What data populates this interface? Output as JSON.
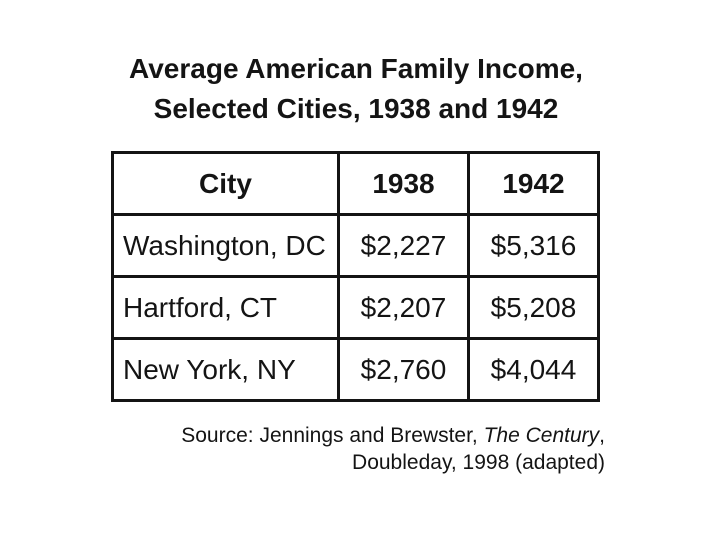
{
  "colors": {
    "background": "#ffffff",
    "text": "#141414",
    "table_border": "#141414"
  },
  "title": {
    "line1": "Average American Family Income,",
    "line2": "Selected Cities, 1938 and 1942"
  },
  "table": {
    "headers": {
      "city": "City",
      "y1938": "1938",
      "y1942": "1942"
    },
    "rows": [
      {
        "city": "Washington, DC",
        "v1938": "$2,227",
        "v1942": "$5,316"
      },
      {
        "city": "Hartford, CT",
        "v1938": "$2,207",
        "v1942": "$5,208"
      },
      {
        "city": "New York, NY",
        "v1938": "$2,760",
        "v1942": "$4,044"
      }
    ]
  },
  "source": {
    "line1_prefix": "Source: Jennings and Brewster, ",
    "line1_italic": "The Century",
    "line1_suffix": ",",
    "line2": "Doubleday, 1998 (adapted)"
  },
  "chart_data": {
    "type": "table",
    "title": "Average American Family Income, Selected Cities, 1938 and 1942",
    "columns": [
      "City",
      "1938",
      "1942"
    ],
    "rows": [
      [
        "Washington, DC",
        "$2,227",
        "$5,316"
      ],
      [
        "Hartford, CT",
        "$2,207",
        "$5,208"
      ],
      [
        "New York, NY",
        "$2,760",
        "$4,044"
      ]
    ],
    "series": [
      {
        "name": "1938",
        "values": [
          2227,
          2207,
          2760
        ]
      },
      {
        "name": "1942",
        "values": [
          5316,
          5208,
          4044
        ]
      }
    ],
    "categories": [
      "Washington, DC",
      "Hartford, CT",
      "New York, NY"
    ],
    "source": "Source: Jennings and Brewster, The Century, Doubleday, 1998 (adapted)"
  }
}
